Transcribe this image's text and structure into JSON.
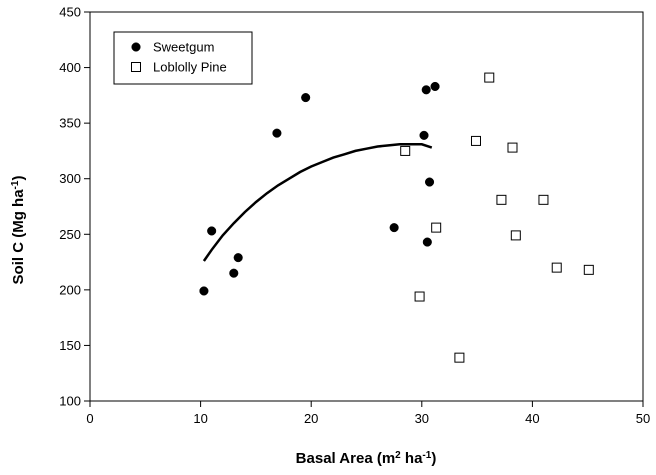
{
  "chart_data": {
    "type": "scatter",
    "xlabel": {
      "main": "Basal Area (m",
      "sup1": "2",
      "mid": " ha",
      "sup2": "-1",
      "end": ")"
    },
    "ylabel": {
      "main": "Soil C (Mg ha",
      "sup": "-1",
      "end": ")"
    },
    "xlim": [
      0,
      50
    ],
    "ylim": [
      100,
      450
    ],
    "xticks": [
      0,
      10,
      20,
      30,
      40,
      50
    ],
    "yticks": [
      100,
      150,
      200,
      250,
      300,
      350,
      400,
      450
    ],
    "grid": false,
    "legend_placement": "top-left",
    "series": [
      {
        "name": "Sweetgum",
        "marker": "filled-circle",
        "color": "#000000",
        "points": [
          [
            10.3,
            199
          ],
          [
            11.0,
            253
          ],
          [
            13.0,
            215
          ],
          [
            13.4,
            229
          ],
          [
            16.9,
            341
          ],
          [
            19.5,
            373
          ],
          [
            27.5,
            256
          ],
          [
            30.2,
            339
          ],
          [
            30.4,
            380
          ],
          [
            30.5,
            243
          ],
          [
            30.7,
            297
          ],
          [
            31.2,
            383
          ]
        ]
      },
      {
        "name": "Loblolly Pine",
        "marker": "open-square",
        "color": "#000000",
        "points": [
          [
            28.5,
            325
          ],
          [
            29.8,
            194
          ],
          [
            31.3,
            256
          ],
          [
            33.4,
            139
          ],
          [
            34.9,
            334
          ],
          [
            36.1,
            391
          ],
          [
            37.2,
            281
          ],
          [
            38.2,
            328
          ],
          [
            38.5,
            249
          ],
          [
            41.0,
            281
          ],
          [
            42.2,
            220
          ],
          [
            45.1,
            218
          ]
        ]
      }
    ],
    "fit_curve": {
      "color": "#000000",
      "points": [
        [
          10.3,
          226
        ],
        [
          11,
          236
        ],
        [
          12,
          249
        ],
        [
          13,
          260
        ],
        [
          14,
          270
        ],
        [
          15,
          279
        ],
        [
          16,
          287
        ],
        [
          17,
          294
        ],
        [
          18,
          300
        ],
        [
          19,
          306
        ],
        [
          20,
          311
        ],
        [
          21,
          315
        ],
        [
          22,
          319
        ],
        [
          23,
          322
        ],
        [
          24,
          325
        ],
        [
          25,
          327
        ],
        [
          26,
          329
        ],
        [
          27,
          330
        ],
        [
          28,
          331
        ],
        [
          29,
          331
        ],
        [
          30,
          331
        ],
        [
          30.9,
          328
        ]
      ]
    }
  }
}
